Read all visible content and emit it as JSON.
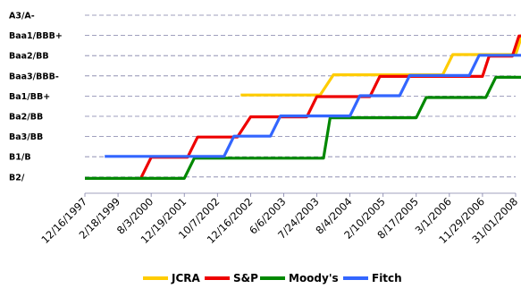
{
  "chart_data": {
    "type": "line",
    "title": "",
    "xlabel": "",
    "ylabel": "",
    "grid": true,
    "legend_position": "bottom",
    "y_categories": [
      "B2/",
      "B1/B",
      "Ba3/BB",
      "Ba2/BB",
      "Ba1/BB+",
      "Baa3/BBB-",
      "Baa2/BB",
      "Baa1/BBB+",
      "A3/A-"
    ],
    "x_tick_labels": [
      "12/16/1997",
      "2/18/1999",
      "8/3/2000",
      "12/19/2001",
      "10/7/2002",
      "12/16/2002",
      "6/6/2003",
      "7/24/2003",
      "8/4/2004",
      "2/10/2005",
      "8/17/2005",
      "3/1/2006",
      "11/29/2006",
      "31/01/2008"
    ],
    "series": [
      {
        "name": "JCRA",
        "color": "#FFCC00",
        "points": [
          {
            "x": 4.7,
            "y": 4
          },
          {
            "x": 7.1,
            "y": 4
          },
          {
            "x": 7.5,
            "y": 5
          },
          {
            "x": 10.8,
            "y": 5
          },
          {
            "x": 11.1,
            "y": 6
          },
          {
            "x": 13.0,
            "y": 6
          },
          {
            "x": 13.2,
            "y": 7
          },
          {
            "x": 14.0,
            "y": 7
          }
        ]
      },
      {
        "name": "S&P",
        "color": "#EE0000",
        "points": [
          {
            "x": 1.7,
            "y": 0
          },
          {
            "x": 2.0,
            "y": 1
          },
          {
            "x": 3.1,
            "y": 1
          },
          {
            "x": 3.4,
            "y": 2
          },
          {
            "x": 4.6,
            "y": 2
          },
          {
            "x": 5.0,
            "y": 3
          },
          {
            "x": 6.7,
            "y": 3
          },
          {
            "x": 7.0,
            "y": 4
          },
          {
            "x": 8.6,
            "y": 4
          },
          {
            "x": 8.9,
            "y": 5
          },
          {
            "x": 12.0,
            "y": 5
          },
          {
            "x": 12.2,
            "y": 6
          },
          {
            "x": 12.9,
            "y": 6
          },
          {
            "x": 13.1,
            "y": 7
          },
          {
            "x": 14.0,
            "y": 7
          }
        ]
      },
      {
        "name": "Moody's",
        "color": "#008800",
        "points": [
          {
            "x": 0.0,
            "y": 0
          },
          {
            "x": 3.0,
            "y": 0
          },
          {
            "x": 3.3,
            "y": 1
          },
          {
            "x": 7.2,
            "y": 1
          },
          {
            "x": 7.4,
            "y": 3
          },
          {
            "x": 10.0,
            "y": 3
          },
          {
            "x": 10.3,
            "y": 4
          },
          {
            "x": 12.1,
            "y": 4
          },
          {
            "x": 12.4,
            "y": 5
          },
          {
            "x": 14.0,
            "y": 5
          }
        ]
      },
      {
        "name": "Fitch",
        "color": "#3366FF",
        "points": [
          {
            "x": 0.6,
            "y": 1
          },
          {
            "x": 4.2,
            "y": 1
          },
          {
            "x": 4.5,
            "y": 2
          },
          {
            "x": 5.6,
            "y": 2
          },
          {
            "x": 5.9,
            "y": 3
          },
          {
            "x": 8.0,
            "y": 3
          },
          {
            "x": 8.3,
            "y": 4
          },
          {
            "x": 9.5,
            "y": 4
          },
          {
            "x": 9.8,
            "y": 5
          },
          {
            "x": 11.6,
            "y": 5
          },
          {
            "x": 11.9,
            "y": 6
          },
          {
            "x": 14.0,
            "y": 6
          }
        ]
      }
    ]
  }
}
